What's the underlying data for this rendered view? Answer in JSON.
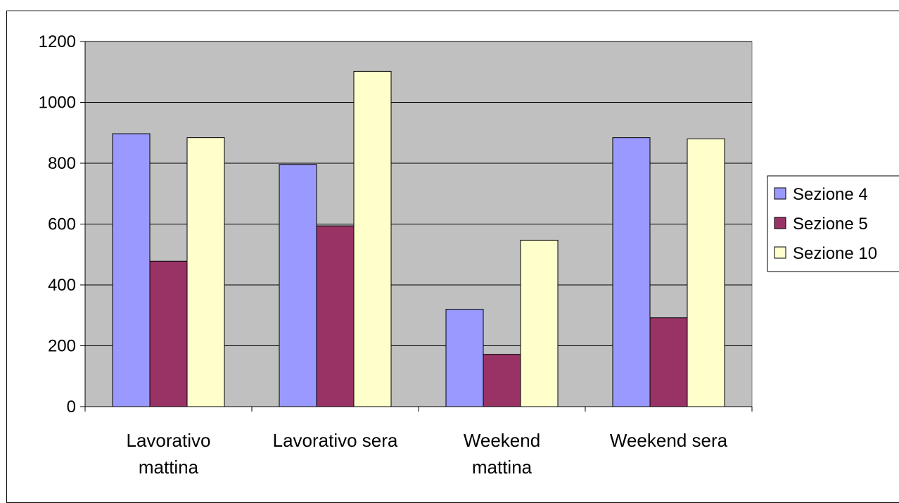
{
  "chart_data": {
    "type": "bar",
    "title": "",
    "xlabel": "",
    "ylabel": "",
    "categories": [
      [
        "Lavorativo",
        "mattina"
      ],
      [
        "Lavorativo sera"
      ],
      [
        "Weekend",
        "mattina"
      ],
      [
        "Weekend sera"
      ]
    ],
    "series": [
      {
        "name": "Sezione 4",
        "color": "#9999FF",
        "values": [
          897,
          796,
          320,
          884
        ]
      },
      {
        "name": "Sezione 5",
        "color": "#993366",
        "values": [
          478,
          594,
          172,
          292
        ]
      },
      {
        "name": "Sezione 10",
        "color": "#FFFFCC",
        "values": [
          884,
          1102,
          547,
          880
        ]
      }
    ],
    "ylim": [
      0,
      1200
    ],
    "yticks": [
      "0",
      "200",
      "400",
      "600",
      "800",
      "1000",
      "1200"
    ],
    "grid": true,
    "plot_background": "#C0C0C0",
    "legend_position": "right"
  }
}
